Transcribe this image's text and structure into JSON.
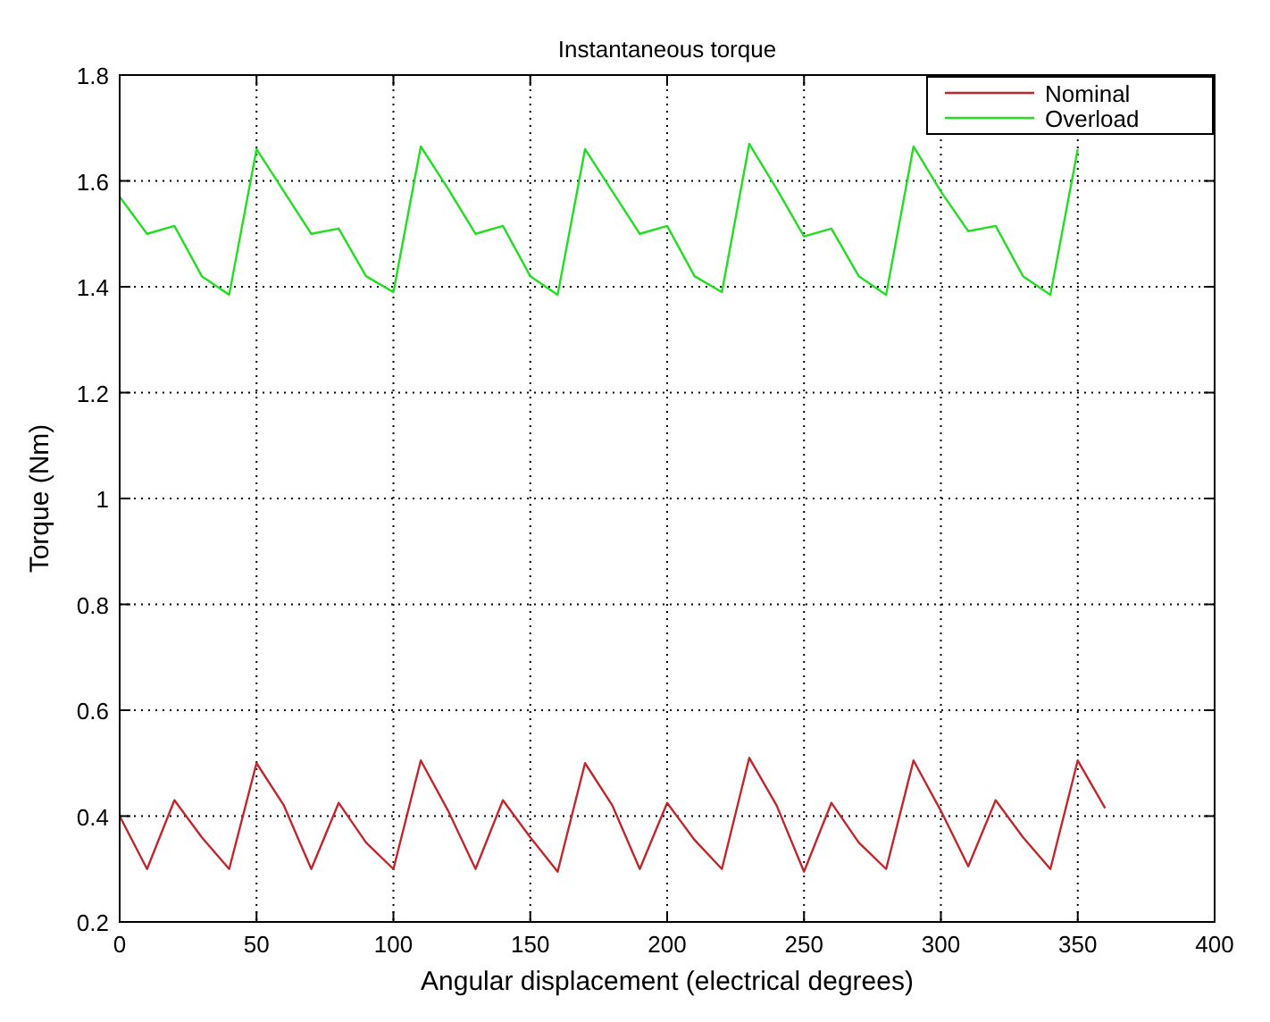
{
  "chart_data": {
    "type": "line",
    "title": "Instantaneous torque",
    "xlabel": "Angular displacement (electrical degrees)",
    "ylabel": "Torque (Nm)",
    "x": [
      0,
      10,
      20,
      30,
      40,
      50,
      60,
      70,
      80,
      90,
      100,
      110,
      120,
      130,
      140,
      150,
      160,
      170,
      180,
      190,
      200,
      210,
      220,
      230,
      240,
      250,
      260,
      270,
      280,
      290,
      300,
      310,
      320,
      330,
      340,
      350,
      360
    ],
    "series": [
      {
        "name": "Nominal",
        "color": "#c0272d",
        "values": [
          0.4,
          0.3,
          0.43,
          0.36,
          0.3,
          0.5,
          0.42,
          0.3,
          0.425,
          0.35,
          0.3,
          0.505,
          0.41,
          0.3,
          0.43,
          0.36,
          0.295,
          0.5,
          0.42,
          0.3,
          0.425,
          0.355,
          0.3,
          0.51,
          0.42,
          0.295,
          0.425,
          0.35,
          0.3,
          0.505,
          0.41,
          0.305,
          0.43,
          0.36,
          0.3,
          0.505,
          0.415
        ]
      },
      {
        "name": "Overload",
        "color": "#22dd22",
        "values": [
          1.57,
          1.5,
          1.515,
          1.42,
          1.385,
          1.66,
          1.58,
          1.5,
          1.51,
          1.42,
          1.39,
          1.665,
          1.585,
          1.5,
          1.515,
          1.42,
          1.385,
          1.66,
          1.58,
          1.5,
          1.515,
          1.42,
          1.39,
          1.67,
          1.585,
          1.495,
          1.51,
          1.42,
          1.385,
          1.665,
          1.58,
          1.505,
          1.515,
          1.42,
          1.385,
          1.66,
          null
        ]
      }
    ],
    "xlim": [
      0,
      400
    ],
    "xticks": [
      0,
      50,
      100,
      150,
      200,
      250,
      300,
      350,
      400
    ],
    "ylim": [
      0.2,
      1.8
    ],
    "yticks": [
      0.2,
      0.4,
      0.6,
      0.8,
      1,
      1.2,
      1.4,
      1.6,
      1.8
    ],
    "grid": true,
    "legend": "top right",
    "marker": "none",
    "line_style": "solid"
  }
}
